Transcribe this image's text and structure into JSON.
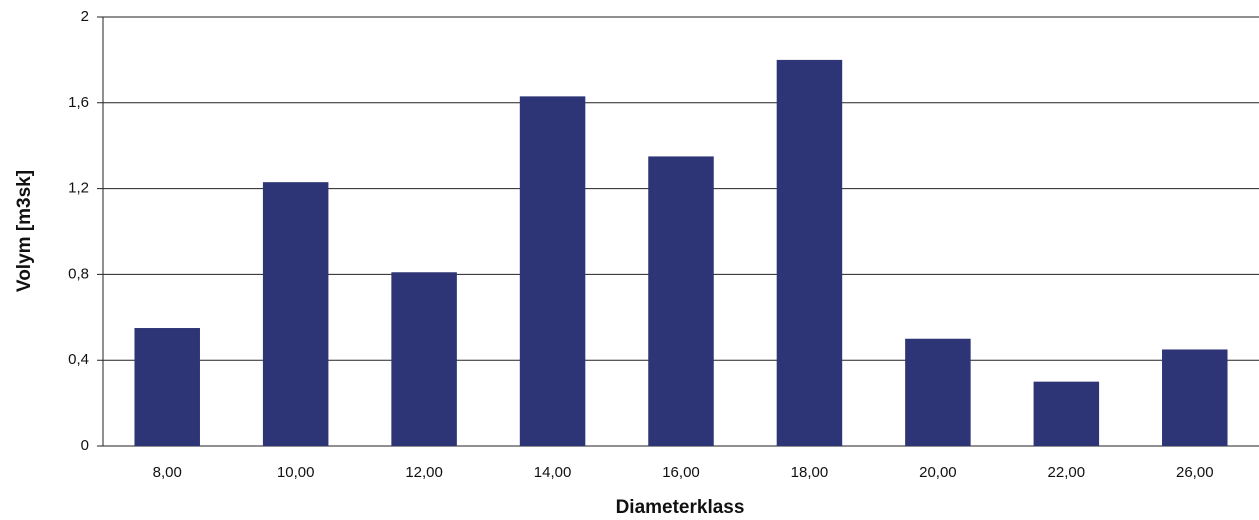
{
  "chart_data": {
    "type": "bar",
    "x_label": "Diameterklass",
    "y_label": "Volym [m3sk]",
    "categories": [
      "8,00",
      "10,00",
      "12,00",
      "14,00",
      "16,00",
      "18,00",
      "20,00",
      "22,00",
      "26,00"
    ],
    "values": [
      0.55,
      1.23,
      0.81,
      1.63,
      1.35,
      1.8,
      0.5,
      0.3,
      0.45
    ],
    "color": "#2e3576",
    "ylim": [
      0,
      2
    ],
    "yticks": [
      0,
      {
        "value": 0.4,
        "label": "0,4"
      },
      {
        "value": 0.8,
        "label": "0,8"
      },
      {
        "value": 1.2,
        "label": "1,2"
      },
      {
        "value": 1.6,
        "label": "1,6"
      },
      2
    ],
    "grid": true
  }
}
